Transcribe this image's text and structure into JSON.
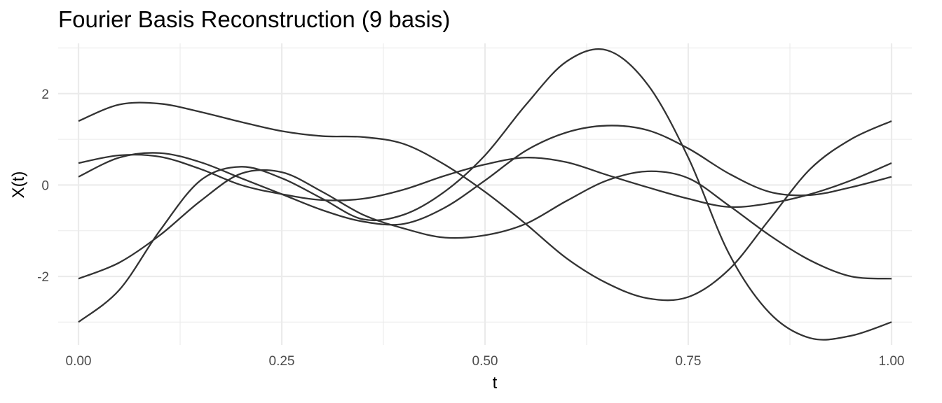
{
  "chart_data": {
    "type": "line",
    "title": "Fourier Basis Reconstruction (9 basis)",
    "xlabel": "t",
    "ylabel": "X(t)",
    "xlim": [
      -0.025,
      1.025
    ],
    "ylim": [
      -3.5,
      3.1
    ],
    "x_ticks": [
      0,
      0.25,
      0.5,
      0.75,
      1
    ],
    "x_tick_labels": [
      "0.00",
      "0.25",
      "0.50",
      "0.75",
      "1.00"
    ],
    "x_minor_ticks": [
      0.125,
      0.375,
      0.625,
      0.875
    ],
    "y_ticks": [
      -2,
      0,
      2
    ],
    "y_tick_labels": [
      "-2",
      "0",
      "2"
    ],
    "y_minor_ticks": [
      -3,
      -1,
      1,
      3
    ],
    "grid": true,
    "legend": "none",
    "line_color": "#333333",
    "x": [
      0,
      0.05,
      0.1,
      0.15,
      0.2,
      0.25,
      0.3,
      0.35,
      0.4,
      0.45,
      0.5,
      0.55,
      0.6,
      0.65,
      0.7,
      0.75,
      0.8,
      0.85,
      0.9,
      0.95,
      1
    ],
    "series": [
      {
        "values": [
          1.4,
          1.76,
          1.78,
          1.6,
          1.38,
          1.18,
          1.07,
          1.05,
          0.9,
          0.45,
          -0.15,
          -0.85,
          -1.6,
          -2.15,
          -2.48,
          -2.45,
          -1.85,
          -0.75,
          0.35,
          1.0,
          1.4
        ]
      },
      {
        "values": [
          0.48,
          0.65,
          0.62,
          0.35,
          0.0,
          -0.2,
          -0.33,
          -0.3,
          -0.1,
          0.2,
          0.45,
          0.6,
          0.5,
          0.22,
          -0.05,
          -0.3,
          -0.48,
          -0.4,
          -0.2,
          0.1,
          0.48
        ]
      },
      {
        "values": [
          0.18,
          0.6,
          0.7,
          0.5,
          0.15,
          -0.2,
          -0.55,
          -0.8,
          -0.85,
          -0.5,
          0.1,
          0.75,
          1.15,
          1.3,
          1.2,
          0.8,
          0.25,
          -0.15,
          -0.22,
          -0.05,
          0.18
        ]
      },
      {
        "values": [
          -2.05,
          -1.7,
          -1.1,
          -0.35,
          0.25,
          0.28,
          -0.15,
          -0.65,
          -0.95,
          -1.15,
          -1.1,
          -0.85,
          -0.35,
          0.1,
          0.3,
          0.15,
          -0.45,
          -1.1,
          -1.65,
          -2.0,
          -2.05
        ]
      },
      {
        "values": [
          -3.0,
          -2.3,
          -1.0,
          0.1,
          0.4,
          0.15,
          -0.3,
          -0.75,
          -0.65,
          -0.15,
          0.65,
          1.75,
          2.7,
          2.95,
          2.2,
          0.6,
          -1.5,
          -2.8,
          -3.35,
          -3.3,
          -3.0
        ]
      }
    ]
  }
}
